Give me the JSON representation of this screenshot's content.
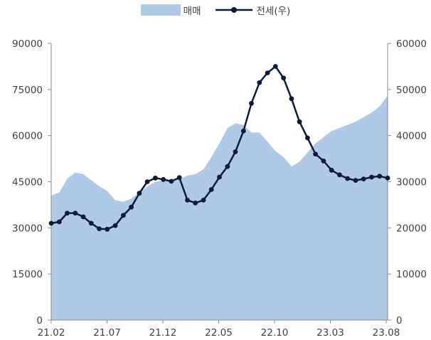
{
  "chart_data": {
    "type": "area+line",
    "legend": [
      {
        "label": "매매",
        "kind": "area",
        "color": "#aecae6"
      },
      {
        "label": "전세(우)",
        "kind": "line-marker",
        "color": "#0d1a38"
      }
    ],
    "x_ticks": [
      "21.02",
      "21.07",
      "21.12",
      "22.05",
      "22.10",
      "23.03",
      "23.08"
    ],
    "y_left": {
      "min": 0,
      "max": 90000,
      "ticks": [
        "0",
        "15000",
        "30000",
        "45000",
        "60000",
        "75000",
        "90000"
      ]
    },
    "y_right": {
      "min": 0,
      "max": 60000,
      "ticks": [
        "0",
        "10000",
        "20000",
        "30000",
        "40000",
        "50000",
        "60000"
      ]
    },
    "series": [
      {
        "name": "매매",
        "axis": "left",
        "type": "area",
        "x": [
          0,
          1,
          2,
          3,
          4,
          5,
          6,
          7,
          8,
          9,
          10,
          11,
          12,
          13,
          14,
          15,
          16,
          17,
          18,
          19,
          20,
          21,
          22,
          23,
          24,
          25,
          26,
          27,
          28,
          29,
          30,
          31,
          32,
          33,
          34,
          35,
          36,
          37,
          38,
          39,
          40,
          41,
          42
        ],
        "values": [
          40500,
          41500,
          46000,
          48000,
          47500,
          45500,
          43500,
          42000,
          39000,
          38500,
          39500,
          41500,
          43500,
          45000,
          45500,
          45000,
          45800,
          47000,
          47500,
          49000,
          53000,
          57500,
          62500,
          64000,
          63500,
          61000,
          61000,
          58000,
          55000,
          53000,
          50000,
          51500,
          54500,
          57500,
          59500,
          61500,
          62500,
          63500,
          64500,
          66000,
          67500,
          69500,
          73000
        ]
      },
      {
        "name": "전세(우)",
        "axis": "right",
        "type": "line",
        "x": [
          0,
          1,
          2,
          3,
          4,
          5,
          6,
          7,
          8,
          9,
          10,
          11,
          12,
          13,
          14,
          15,
          16,
          17,
          18,
          19,
          20,
          21,
          22,
          23,
          24,
          25,
          26,
          27,
          28,
          29,
          30,
          31,
          32,
          33,
          34,
          35,
          36,
          37,
          38,
          39,
          40,
          41,
          42
        ],
        "values": [
          21000,
          21300,
          23200,
          23200,
          22400,
          21000,
          19800,
          19700,
          20500,
          22700,
          24500,
          27500,
          30000,
          30800,
          30500,
          30100,
          30900,
          26000,
          25400,
          26000,
          28300,
          31000,
          33300,
          36500,
          41000,
          47000,
          51500,
          53600,
          55000,
          52500,
          48000,
          43000,
          39500,
          36000,
          34500,
          32500,
          31500,
          30700,
          30300,
          30600,
          31000,
          31200,
          30800
        ]
      }
    ],
    "x_domain": [
      0,
      42
    ]
  }
}
